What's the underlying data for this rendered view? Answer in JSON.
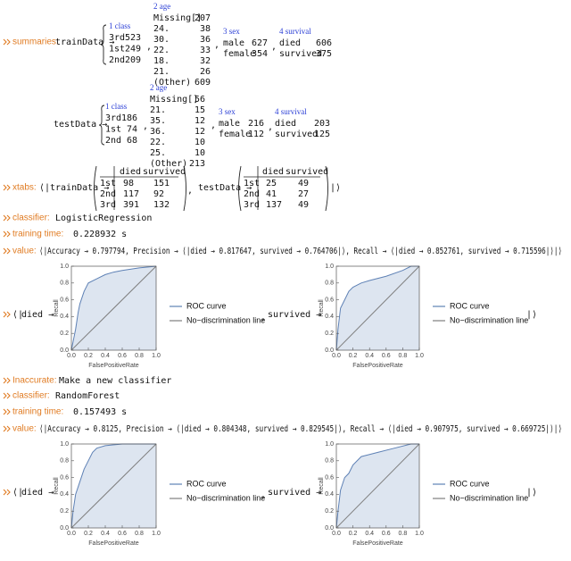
{
  "separator": ",",
  "summaries": {
    "label": "summaries:",
    "train": {
      "name": "trainData →",
      "columns": [
        {
          "header": "1 class",
          "rows": [
            [
              "3rd",
              "523"
            ],
            [
              "1st",
              "249"
            ],
            [
              "2nd",
              "209"
            ]
          ]
        },
        {
          "header": "2 age",
          "rows": [
            [
              "Missing[]",
              "207"
            ],
            [
              "24.",
              "38"
            ],
            [
              "30.",
              "36"
            ],
            [
              "22.",
              "33"
            ],
            [
              "18.",
              "32"
            ],
            [
              "21.",
              "26"
            ],
            [
              "(Other)",
              "609"
            ]
          ]
        },
        {
          "header": "3 sex",
          "rows": [
            [
              "male",
              "627"
            ],
            [
              "female",
              "354"
            ]
          ]
        },
        {
          "header": "4 survival",
          "rows": [
            [
              "died",
              "606"
            ],
            [
              "survived",
              "375"
            ]
          ]
        }
      ]
    },
    "test": {
      "name": "testData →",
      "columns": [
        {
          "header": "1 class",
          "rows": [
            [
              "3rd",
              "186"
            ],
            [
              "1st",
              "74"
            ],
            [
              "2nd",
              "68"
            ]
          ]
        },
        {
          "header": "2 age",
          "rows": [
            [
              "Missing[]",
              "56"
            ],
            [
              "21.",
              "15"
            ],
            [
              "35.",
              "12"
            ],
            [
              "36.",
              "12"
            ],
            [
              "22.",
              "10"
            ],
            [
              "25.",
              "10"
            ],
            [
              "(Other)",
              "213"
            ]
          ]
        },
        {
          "header": "3 sex",
          "rows": [
            [
              "male",
              "216"
            ],
            [
              "female",
              "112"
            ]
          ]
        },
        {
          "header": "4 survival",
          "rows": [
            [
              "died",
              "203"
            ],
            [
              "survived",
              "125"
            ]
          ]
        }
      ]
    }
  },
  "xtabs": {
    "label": "xtabs:",
    "open": "⟨|",
    "close": "|⟩",
    "tables": [
      {
        "name": "trainData →",
        "columns": [
          "died",
          "survived"
        ],
        "rows": [
          [
            "1st",
            "98",
            "151"
          ],
          [
            "2nd",
            "117",
            "92"
          ],
          [
            "3rd",
            "391",
            "132"
          ]
        ]
      },
      {
        "name": "testData →",
        "columns": [
          "died",
          "survived"
        ],
        "rows": [
          [
            "1st",
            "25",
            "49"
          ],
          [
            "2nd",
            "41",
            "27"
          ],
          [
            "3rd",
            "137",
            "49"
          ]
        ]
      }
    ]
  },
  "message": {
    "label": "Inaccurate:",
    "text": "Make a new classifier"
  },
  "results": [
    {
      "classifier_label": "classifier:",
      "classifier": "LogisticRegression",
      "time_label": "training time:",
      "time": "0.228932 s",
      "value_label": "value:",
      "value": "⟨|Accuracy → 0.797794, Precision → ⟨|died → 0.817647, survived → 0.764706|⟩, Recall → ⟨|died → 0.852761, survived → 0.715596|⟩|⟩",
      "open": "⟨|",
      "close": "|⟩",
      "charts": [
        {
          "type": "line",
          "key": "died →",
          "xlabel": "FalsePositiveRate",
          "ylabel": "Recall",
          "xlim": [
            0,
            1
          ],
          "ylim": [
            0,
            1
          ],
          "xticks": [
            {
              "value": 0,
              "label": "0.0"
            },
            0.2,
            0.4,
            0.6,
            0.8,
            {
              "value": 1,
              "label": "1.0"
            }
          ],
          "yticks": [
            {
              "value": 0,
              "label": "0.0"
            },
            0.2,
            0.4,
            0.6,
            0.8,
            {
              "value": 1,
              "label": "1.0"
            }
          ],
          "series": [
            {
              "name": "ROC curve",
              "color": "#5e81b5",
              "x": [
                0,
                0.02,
                0.05,
                0.08,
                0.1,
                0.15,
                0.2,
                0.3,
                0.4,
                0.5,
                0.6,
                0.8,
                1
              ],
              "y": [
                0,
                0.1,
                0.25,
                0.45,
                0.55,
                0.7,
                0.8,
                0.85,
                0.9,
                0.93,
                0.95,
                0.98,
                1
              ]
            },
            {
              "name": "No−discrimination line",
              "color": "#7f7f7f",
              "x": [
                0,
                1
              ],
              "y": [
                0,
                1
              ]
            }
          ]
        },
        {
          "type": "line",
          "key": "survived →",
          "xlabel": "FalsePositiveRate",
          "ylabel": "Recall",
          "xlim": [
            0,
            1
          ],
          "ylim": [
            0,
            1
          ],
          "xticks": [
            {
              "value": 0,
              "label": "0.0"
            },
            0.2,
            0.4,
            0.6,
            0.8,
            {
              "value": 1,
              "label": "1.0"
            }
          ],
          "yticks": [
            {
              "value": 0,
              "label": "0.0"
            },
            0.2,
            0.4,
            0.6,
            0.8,
            {
              "value": 1,
              "label": "1.0"
            }
          ],
          "series": [
            {
              "name": "ROC curve",
              "color": "#5e81b5",
              "x": [
                0,
                0.02,
                0.05,
                0.1,
                0.15,
                0.2,
                0.3,
                0.4,
                0.6,
                0.8,
                0.9,
                1
              ],
              "y": [
                0,
                0.25,
                0.5,
                0.6,
                0.7,
                0.75,
                0.8,
                0.83,
                0.88,
                0.95,
                1,
                1
              ]
            },
            {
              "name": "No−discrimination line",
              "color": "#7f7f7f",
              "x": [
                0,
                1
              ],
              "y": [
                0,
                1
              ]
            }
          ]
        }
      ]
    },
    {
      "classifier_label": "classifier:",
      "classifier": "RandomForest",
      "time_label": "training time:",
      "time": "0.157493 s",
      "value_label": "value:",
      "value": "⟨|Accuracy → 0.8125, Precision → ⟨|died → 0.804348, survived → 0.829545|⟩, Recall → ⟨|died → 0.907975, survived → 0.669725|⟩|⟩",
      "open": "⟨|",
      "close": "|⟩",
      "charts": [
        {
          "type": "line",
          "key": "died →",
          "xlabel": "FalsePositiveRate",
          "ylabel": "Recall",
          "xlim": [
            0,
            1
          ],
          "ylim": [
            0,
            1
          ],
          "xticks": [
            {
              "value": 0,
              "label": "0.0"
            },
            0.2,
            0.4,
            0.6,
            0.8,
            {
              "value": 1,
              "label": "1.0"
            }
          ],
          "yticks": [
            {
              "value": 0,
              "label": "0.0"
            },
            0.2,
            0.4,
            0.6,
            0.8,
            {
              "value": 1,
              "label": "1.0"
            }
          ],
          "series": [
            {
              "name": "ROC curve",
              "color": "#5e81b5",
              "x": [
                0,
                0.02,
                0.05,
                0.1,
                0.15,
                0.2,
                0.25,
                0.3,
                0.4,
                0.6,
                1
              ],
              "y": [
                0,
                0.2,
                0.4,
                0.55,
                0.7,
                0.8,
                0.9,
                0.95,
                0.98,
                1,
                1
              ]
            },
            {
              "name": "No−discrimination line",
              "color": "#7f7f7f",
              "x": [
                0,
                1
              ],
              "y": [
                0,
                1
              ]
            }
          ]
        },
        {
          "type": "line",
          "key": "survived →",
          "xlabel": "FalsePositiveRate",
          "ylabel": "Recall",
          "xlim": [
            0,
            1
          ],
          "ylim": [
            0,
            1
          ],
          "xticks": [
            {
              "value": 0,
              "label": "0.0"
            },
            0.2,
            0.4,
            0.6,
            0.8,
            {
              "value": 1,
              "label": "1.0"
            }
          ],
          "yticks": [
            {
              "value": 0,
              "label": "0.0"
            },
            0.2,
            0.4,
            0.6,
            0.8,
            {
              "value": 1,
              "label": "1.0"
            }
          ],
          "series": [
            {
              "name": "ROC curve",
              "color": "#5e81b5",
              "x": [
                0,
                0.02,
                0.05,
                0.1,
                0.15,
                0.2,
                0.3,
                0.5,
                0.7,
                0.9,
                1
              ],
              "y": [
                0,
                0.2,
                0.45,
                0.6,
                0.65,
                0.75,
                0.85,
                0.9,
                0.95,
                1,
                1
              ]
            },
            {
              "name": "No−discrimination line",
              "color": "#7f7f7f",
              "x": [
                0,
                1
              ],
              "y": [
                0,
                1
              ]
            }
          ]
        }
      ]
    }
  ]
}
